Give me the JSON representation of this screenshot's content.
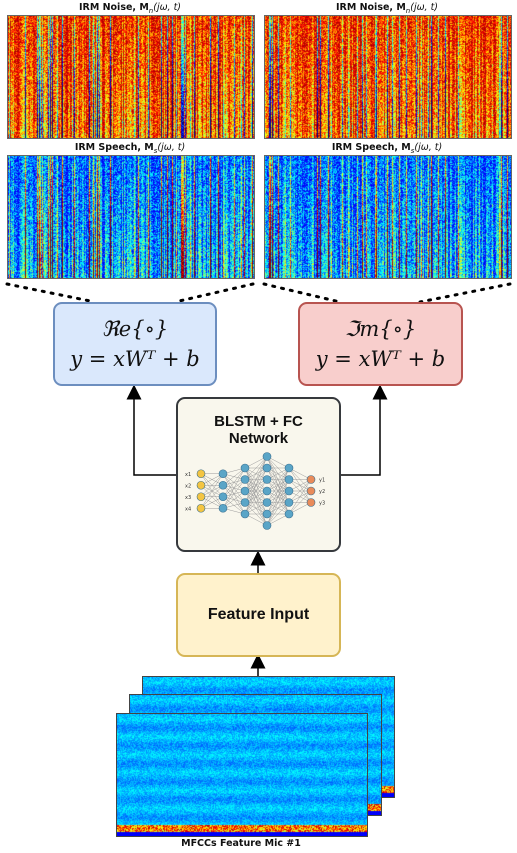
{
  "spectrograms": [
    {
      "caption_prefix": "IRM Noise, ",
      "caption_symbol": "M",
      "caption_sub": "n",
      "caption_args": "(jω, t)",
      "palette": "noise"
    },
    {
      "caption_prefix": "IRM Noise, ",
      "caption_symbol": "M",
      "caption_sub": "n",
      "caption_args": "(jω, t)",
      "palette": "noise"
    },
    {
      "caption_prefix": "IRM Speech, ",
      "caption_symbol": "M",
      "caption_sub": "s",
      "caption_args": "(jω, t)",
      "palette": "speech"
    },
    {
      "caption_prefix": "IRM Speech, ",
      "caption_symbol": "M",
      "caption_sub": "s",
      "caption_args": "(jω, t)",
      "palette": "speech"
    }
  ],
  "real_box": {
    "line1": "ℜe{∘}",
    "line2": "y = xWᵀ + b",
    "fill": "#dae8fc",
    "stroke": "#6c8ebf"
  },
  "imag_box": {
    "line1": "ℑm{∘}",
    "line2": "y = xWᵀ + b",
    "fill": "#f8cecc",
    "stroke": "#b85450"
  },
  "network_box": {
    "title_line1": "BLSTM + FC",
    "title_line2": "Network",
    "fill": "#f9f7ed",
    "stroke": "#36393d",
    "input_labels": [
      "x1",
      "x2",
      "x3",
      "x4"
    ],
    "output_labels": [
      "y1",
      "y2",
      "y3"
    ]
  },
  "feature_box": {
    "label": "Feature Input",
    "fill": "#fff2cc",
    "stroke": "#d6b656"
  },
  "mfcc_caption": "MFCCs Feature Mic #1"
}
